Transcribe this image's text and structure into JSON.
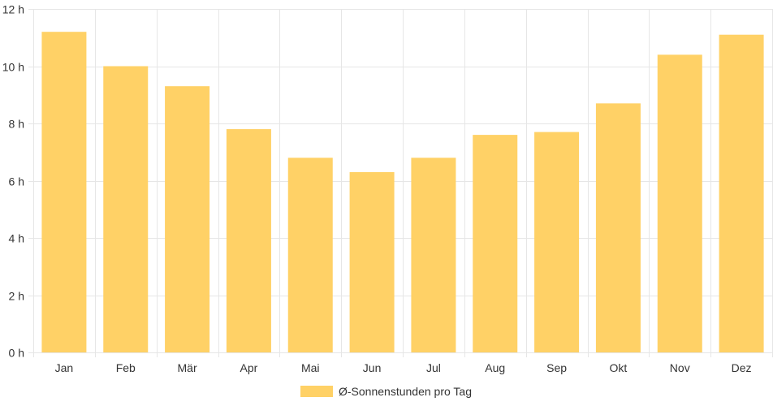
{
  "chart_data": {
    "type": "bar",
    "title": "",
    "xlabel": "",
    "ylabel": "",
    "categories": [
      "Jan",
      "Feb",
      "Mär",
      "Apr",
      "Mai",
      "Jun",
      "Jul",
      "Aug",
      "Sep",
      "Okt",
      "Nov",
      "Dez"
    ],
    "series": [
      {
        "name": "Ø-Sonnenstunden pro Tag",
        "values": [
          11.2,
          10.0,
          9.3,
          7.8,
          6.8,
          6.3,
          6.8,
          7.6,
          7.7,
          8.7,
          10.4,
          11.1
        ]
      }
    ],
    "ylim": [
      0,
      12
    ],
    "y_ticks": [
      "0 h",
      "2 h",
      "4 h",
      "6 h",
      "8 h",
      "10 h",
      "12 h"
    ],
    "grid": true,
    "legend_position": "bottom",
    "colors": {
      "bar": "#FFD166",
      "grid": "#e6e6e6",
      "text": "#333333"
    }
  }
}
